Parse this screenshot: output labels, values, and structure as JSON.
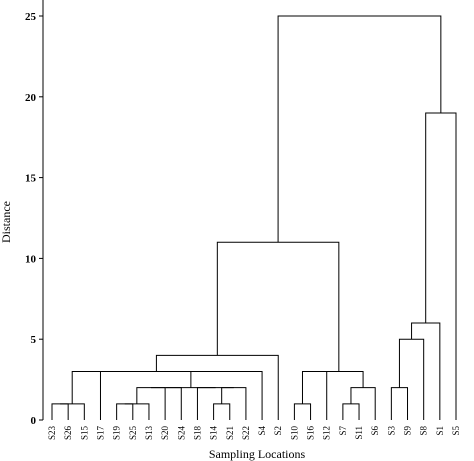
{
  "chart_data": {
    "type": "dendrogram",
    "title": "",
    "xlabel": "Sampling Locations",
    "ylabel": "Distance",
    "ylim": [
      0,
      26
    ],
    "yticks": [
      0,
      5,
      10,
      15,
      20,
      25
    ],
    "grid": false,
    "leaves": [
      "S23",
      "S26",
      "S15",
      "S17",
      "S19",
      "S25",
      "S13",
      "S20",
      "S24",
      "S18",
      "S14",
      "S21",
      "S22",
      "S4",
      "S2",
      "S10",
      "S16",
      "S12",
      "S7",
      "S11",
      "S6",
      "S3",
      "S9",
      "S8",
      "S1",
      "S5"
    ],
    "merges": [
      {
        "a": "S23",
        "b": "S26",
        "distance": 1
      },
      {
        "a": "S23|S26",
        "b": "S15",
        "distance": 1
      },
      {
        "a": "S19",
        "b": "S25",
        "distance": 1
      },
      {
        "a": "S19|S25",
        "b": "S13",
        "distance": 1
      },
      {
        "a": "S19|S25|S13",
        "b": "S20",
        "distance": 2
      },
      {
        "a": "S19|S25|S13|S20",
        "b": "S24",
        "distance": 2
      },
      {
        "a": "S14",
        "b": "S21",
        "distance": 1
      },
      {
        "a": "S14|S21",
        "b": "S22",
        "distance": 2
      },
      {
        "a": "S18",
        "b": "S14|S21|S22",
        "distance": 2
      },
      {
        "a": "S19-S24",
        "b": "S18-S22",
        "distance": 2
      },
      {
        "a": "S19-S24|S18-S22",
        "b": "S4",
        "distance": 3
      },
      {
        "a": "S23-S15",
        "b": "S17",
        "distance": 3
      },
      {
        "a": "S23-S17",
        "b": "S19-S4",
        "distance": 3
      },
      {
        "a": "S23-S4",
        "b": "S2",
        "distance": 4
      },
      {
        "a": "S10",
        "b": "S16",
        "distance": 1
      },
      {
        "a": "S7",
        "b": "S11",
        "distance": 1
      },
      {
        "a": "S7|S11",
        "b": "S6",
        "distance": 2
      },
      {
        "a": "S10|S16",
        "b": "S12",
        "distance": 3
      },
      {
        "a": "S10-S12",
        "b": "S7-S6",
        "distance": 3
      },
      {
        "a": "S23-S2",
        "b": "S10-S6",
        "distance": 11
      },
      {
        "a": "S3",
        "b": "S9",
        "distance": 2
      },
      {
        "a": "S3|S9",
        "b": "S8",
        "distance": 5
      },
      {
        "a": "S3-S8",
        "b": "S1",
        "distance": 6
      },
      {
        "a": "S3-S1",
        "b": "S5",
        "distance": 19
      },
      {
        "a": "S23-S6",
        "b": "S3-S5",
        "distance": 25
      }
    ]
  }
}
